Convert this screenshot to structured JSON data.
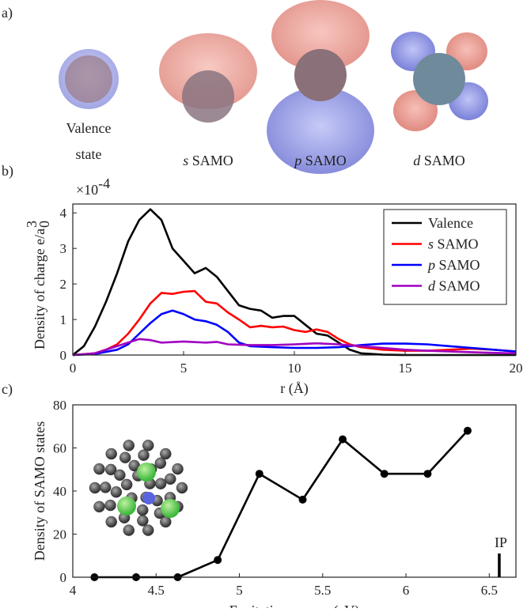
{
  "figure": {
    "panel_labels": [
      "a)",
      "b)",
      "c)"
    ],
    "orbital_captions": [
      [
        "Valence",
        "state"
      ],
      [
        "s SAMO"
      ],
      [
        "p SAMO"
      ],
      [
        "d SAMO"
      ]
    ]
  },
  "chart_data": [
    {
      "type": "line",
      "ylabel": "Density of charge e/a",
      "ylabel_sub": "0",
      "ylabel_sup": "3",
      "y_multiplier": "×10",
      "y_multiplier_exp": "-4",
      "xlabel": "r (Å)",
      "xlim": [
        0,
        20
      ],
      "xticks": [
        0,
        5,
        10,
        15,
        20
      ],
      "ylim": [
        0,
        4.25
      ],
      "yticks": [
        0,
        1,
        2,
        3,
        4
      ],
      "legend": "upper-right",
      "series": [
        {
          "name": "Valence",
          "color": "#000000",
          "x": [
            0,
            0.5,
            1,
            1.5,
            2,
            2.5,
            3,
            3.5,
            4,
            4.5,
            5,
            5.5,
            6,
            6.5,
            7,
            7.5,
            8,
            8.5,
            9,
            9.5,
            10,
            10.5,
            11,
            11.5,
            12,
            12.5,
            13,
            14,
            15,
            20
          ],
          "values": [
            0,
            0.25,
            0.8,
            1.5,
            2.3,
            3.2,
            3.8,
            4.1,
            3.8,
            3.0,
            2.65,
            2.3,
            2.45,
            2.2,
            1.8,
            1.4,
            1.3,
            1.25,
            1.05,
            1.1,
            1.1,
            0.85,
            0.6,
            0.55,
            0.35,
            0.15,
            0.05,
            0.01,
            0,
            0
          ]
        },
        {
          "name": "s SAMO",
          "color": "#ff0000",
          "x": [
            0,
            1,
            1.5,
            2,
            2.5,
            3,
            3.5,
            4,
            4.5,
            5,
            5.5,
            6,
            6.5,
            7,
            7.5,
            8,
            8.5,
            9,
            9.5,
            10,
            10.5,
            11,
            11.5,
            12,
            12.5,
            13,
            14,
            15,
            16,
            17,
            18,
            19,
            20
          ],
          "values": [
            0,
            0.05,
            0.15,
            0.3,
            0.6,
            1.0,
            1.45,
            1.75,
            1.72,
            1.78,
            1.8,
            1.5,
            1.45,
            1.2,
            1.0,
            0.78,
            0.82,
            0.78,
            0.8,
            0.7,
            0.65,
            0.72,
            0.65,
            0.45,
            0.3,
            0.22,
            0.15,
            0.12,
            0.12,
            0.15,
            0.18,
            0.15,
            0.1
          ]
        },
        {
          "name": "p SAMO",
          "color": "#0000ff",
          "x": [
            0,
            1,
            2,
            2.5,
            3,
            3.5,
            4,
            4.5,
            5,
            5.5,
            6,
            6.5,
            7,
            7.5,
            8,
            9,
            10,
            11,
            12,
            13,
            14,
            15,
            16,
            17,
            18,
            19,
            20
          ],
          "values": [
            0,
            0.03,
            0.15,
            0.3,
            0.6,
            0.9,
            1.15,
            1.25,
            1.15,
            1.0,
            0.95,
            0.85,
            0.65,
            0.35,
            0.25,
            0.22,
            0.2,
            0.2,
            0.22,
            0.28,
            0.32,
            0.32,
            0.3,
            0.25,
            0.2,
            0.15,
            0.1
          ]
        },
        {
          "name": "d SAMO",
          "color": "#a000c0",
          "x": [
            0,
            1,
            2,
            3,
            3.5,
            4,
            5,
            6,
            6.5,
            7,
            8,
            9,
            10,
            11,
            12,
            13,
            14,
            15,
            16,
            17,
            18,
            19,
            20
          ],
          "values": [
            0,
            0.05,
            0.25,
            0.45,
            0.42,
            0.35,
            0.38,
            0.35,
            0.37,
            0.3,
            0.28,
            0.28,
            0.3,
            0.33,
            0.3,
            0.25,
            0.2,
            0.15,
            0.12,
            0.1,
            0.08,
            0.06,
            0.05
          ]
        }
      ]
    },
    {
      "type": "line",
      "ylabel": "Density of SAMO states",
      "xlabel": "Excitation energy (eV)",
      "xlim": [
        4,
        6.66
      ],
      "xticks": [
        4,
        4.5,
        5,
        5.5,
        6,
        6.5
      ],
      "ylim": [
        0,
        80
      ],
      "yticks": [
        0,
        20,
        40,
        60,
        80
      ],
      "marker": "circle",
      "series": [
        {
          "color": "#000000",
          "x": [
            4.13,
            4.38,
            4.63,
            4.87,
            5.12,
            5.38,
            5.62,
            5.87,
            6.13,
            6.37
          ],
          "values": [
            0,
            0,
            0,
            8,
            48,
            36,
            64,
            48,
            48,
            68
          ]
        }
      ],
      "annotation": {
        "label": "IP",
        "x": 6.56,
        "height": 11
      }
    }
  ]
}
